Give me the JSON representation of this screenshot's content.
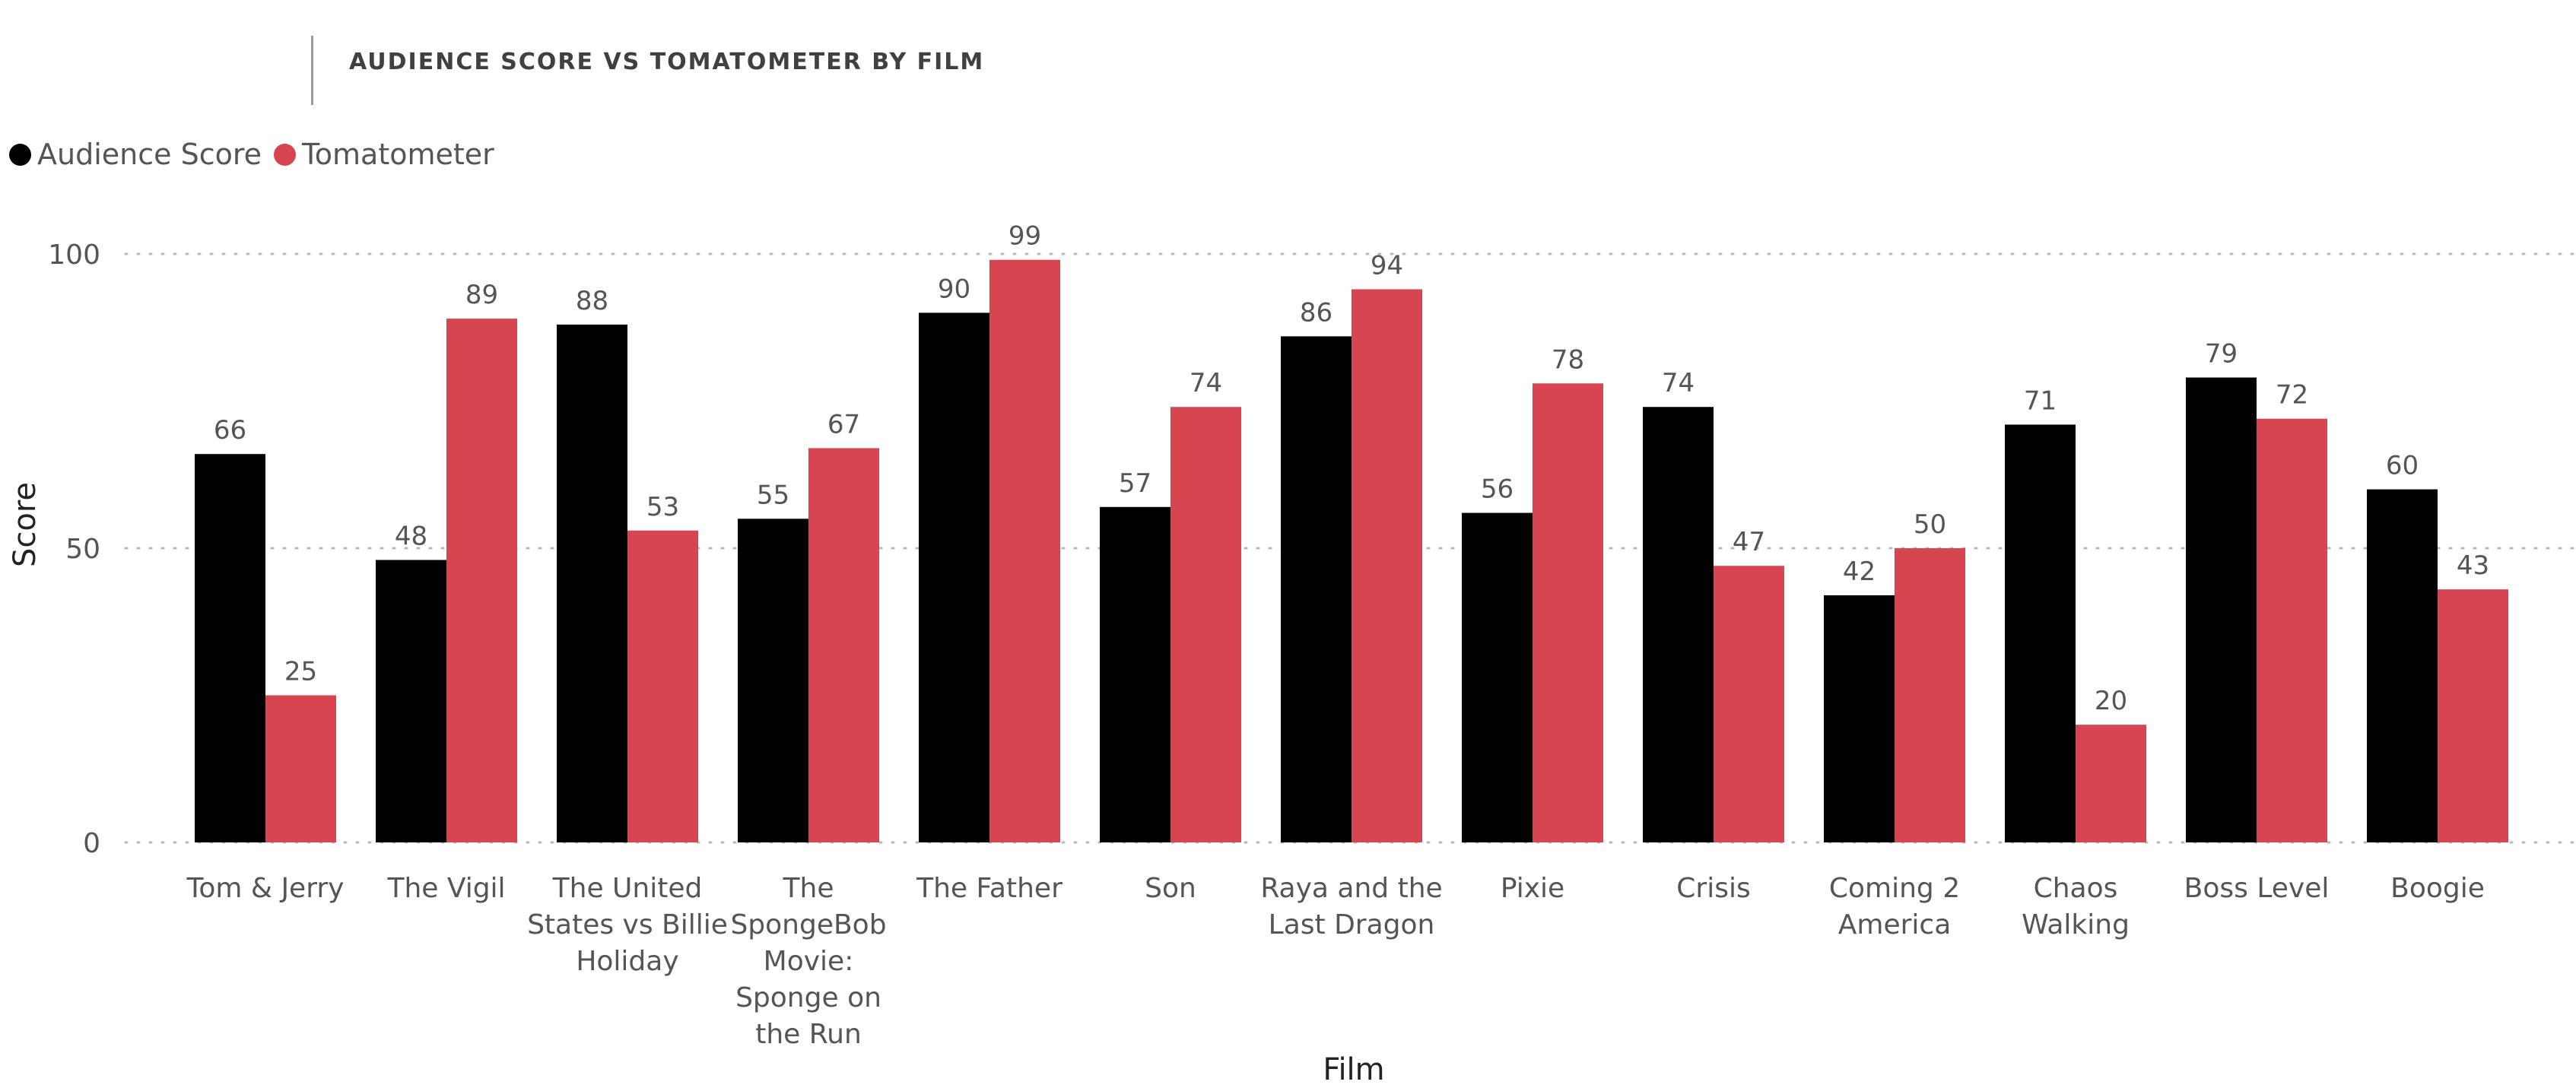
{
  "colors": {
    "audience": "#000000",
    "tomatometer": "#d64550",
    "grid": "#b8b8b8",
    "label_text": "#555555",
    "axis_title": "#222222"
  },
  "chart_data": {
    "type": "bar",
    "title": "AUDIENCE SCORE VS TOMATOMETER BY FILM",
    "xlabel": "Film",
    "ylabel": "Score",
    "ylim": [
      0,
      100
    ],
    "yticks": [
      0,
      50,
      100
    ],
    "grid": true,
    "legend_position": "top-left",
    "categories": [
      [
        "Tom & Jerry"
      ],
      [
        "The Vigil"
      ],
      [
        "The United",
        "States vs Billie",
        "Holiday"
      ],
      [
        "The",
        "SpongeBob",
        "Movie:",
        "Sponge on",
        "the Run"
      ],
      [
        "The Father"
      ],
      [
        "Son"
      ],
      [
        "Raya and the",
        "Last Dragon"
      ],
      [
        "Pixie"
      ],
      [
        "Crisis"
      ],
      [
        "Coming 2",
        "America"
      ],
      [
        "Chaos",
        "Walking"
      ],
      [
        "Boss Level"
      ],
      [
        "Boogie"
      ]
    ],
    "series": [
      {
        "name": "Audience Score",
        "color": "#000000",
        "values": [
          66,
          48,
          88,
          55,
          90,
          57,
          86,
          56,
          74,
          42,
          71,
          79,
          60
        ]
      },
      {
        "name": "Tomatometer",
        "color": "#d64550",
        "values": [
          25,
          89,
          53,
          67,
          99,
          74,
          94,
          78,
          47,
          50,
          20,
          72,
          43
        ]
      }
    ]
  }
}
